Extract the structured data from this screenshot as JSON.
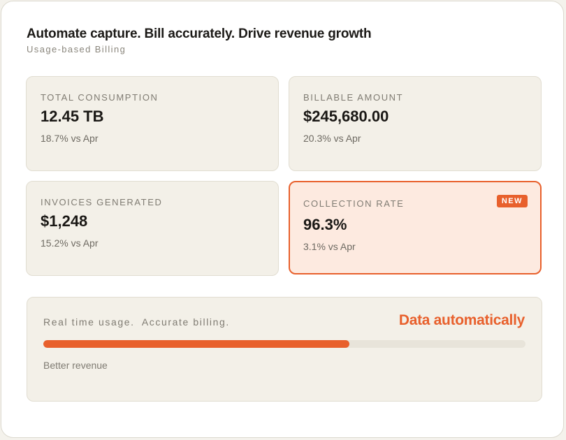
{
  "header": {
    "title": "Automate capture. Bill accurately. Drive revenue growth",
    "subtitle": "Usage-based Billing"
  },
  "metrics": [
    {
      "label": "TOTAL CONSUMPTION",
      "value": "12.45 TB",
      "change": "18.7% vs Apr"
    },
    {
      "label": "BILLABLE AMOUNT",
      "value": "$245,680.00",
      "change": "20.3% vs Apr"
    },
    {
      "label": "INVOICES GENERATED",
      "value": "$1,248",
      "change": "15.2% vs Apr"
    },
    {
      "label": "COLLECTION RATE",
      "value": "96.3%",
      "change": "3.1% vs Apr",
      "badge": "NEW"
    }
  ],
  "progress": {
    "tagline": "Real time usage.  Accurate billing.",
    "headline": "Data automatically",
    "footer": "Better revenue",
    "fraction": 0.635
  },
  "colors": {
    "accent": "#e8602c",
    "card_bg": "#f3f0e8",
    "highlight_bg": "#fdeae0"
  }
}
